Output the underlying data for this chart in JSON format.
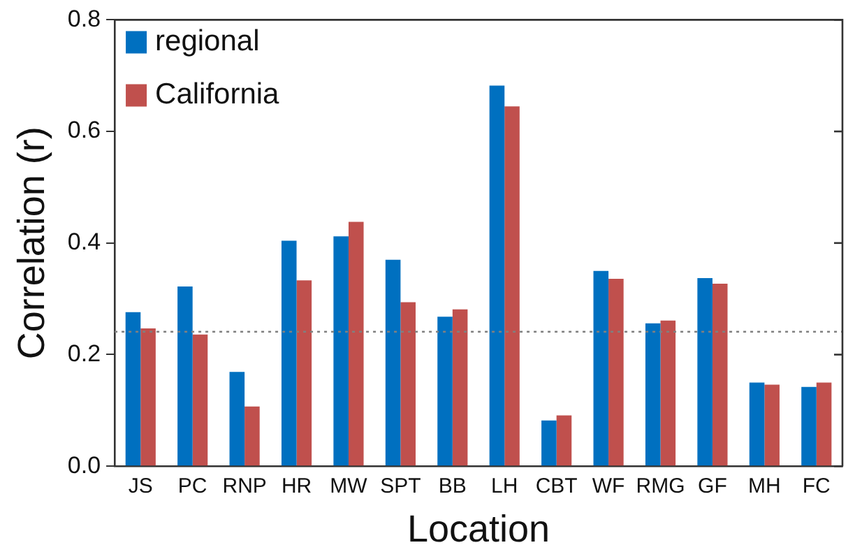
{
  "chart_data": {
    "type": "bar",
    "xlabel": "Location",
    "ylabel": "Correlation (r)",
    "categories": [
      "JS",
      "PC",
      "RNP",
      "HR",
      "MW",
      "SPT",
      "BB",
      "LH",
      "CBT",
      "WF",
      "RMG",
      "GF",
      "MH",
      "FC"
    ],
    "series": [
      {
        "name": "regional",
        "color": "#0070c0",
        "values": [
          0.276,
          0.322,
          0.169,
          0.404,
          0.412,
          0.37,
          0.268,
          0.682,
          0.082,
          0.35,
          0.256,
          0.337,
          0.15,
          0.142
        ]
      },
      {
        "name": "California",
        "color": "#c0504d",
        "values": [
          0.247,
          0.236,
          0.107,
          0.333,
          0.438,
          0.294,
          0.281,
          0.645,
          0.091,
          0.336,
          0.261,
          0.327,
          0.146,
          0.15
        ]
      }
    ],
    "ylim": [
      0,
      0.8
    ],
    "yticks": [
      {
        "value": 0,
        "label": "0.0"
      },
      {
        "value": 0.2,
        "label": "0.2"
      },
      {
        "value": 0.4,
        "label": "0.4"
      },
      {
        "value": 0.6,
        "label": "0.6"
      },
      {
        "value": 0.8,
        "label": "0.8"
      }
    ],
    "ref_lines": [
      {
        "axis": "y",
        "value": 0.241,
        "color": "#808080",
        "line_style": "dotted"
      }
    ],
    "grid": false,
    "legend": "top left"
  }
}
